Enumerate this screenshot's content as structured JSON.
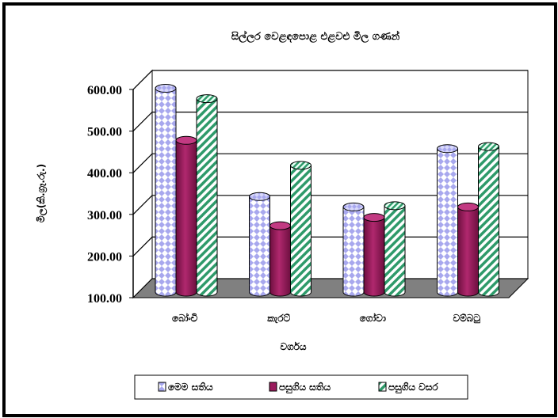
{
  "chart_data": {
    "type": "bar",
    "title": "සිල්ලර වෙළඳපොළ එළවළු මිල ගණන්",
    "xlabel": "වර්ගය",
    "ylabel": "මිල(කි.ග්‍රෑ.රු.)",
    "categories": [
      "බෝංචි",
      "කැරට්",
      "ගෝවා",
      "වම්බටු"
    ],
    "ylim": [
      100,
      600
    ],
    "yticks": [
      "100.00",
      "200.00",
      "300.00",
      "400.00",
      "500.00",
      "600.00"
    ],
    "grid": true,
    "legend_position": "bottom",
    "series": [
      {
        "name": "මෙම සතිය",
        "values": [
          580,
          320,
          295,
          435
        ],
        "color": "#b8b8f0",
        "pattern": "diamond"
      },
      {
        "name": "පසුගිය සතිය",
        "values": [
          455,
          250,
          270,
          295
        ],
        "color": "#9b1c5e",
        "pattern": "solid"
      },
      {
        "name": "පසුගිය වසර",
        "values": [
          555,
          395,
          298,
          440
        ],
        "color": "#2e9a6a",
        "pattern": "diagonal"
      }
    ]
  },
  "colors": {
    "floor": "#808080",
    "frame": "#000000"
  }
}
